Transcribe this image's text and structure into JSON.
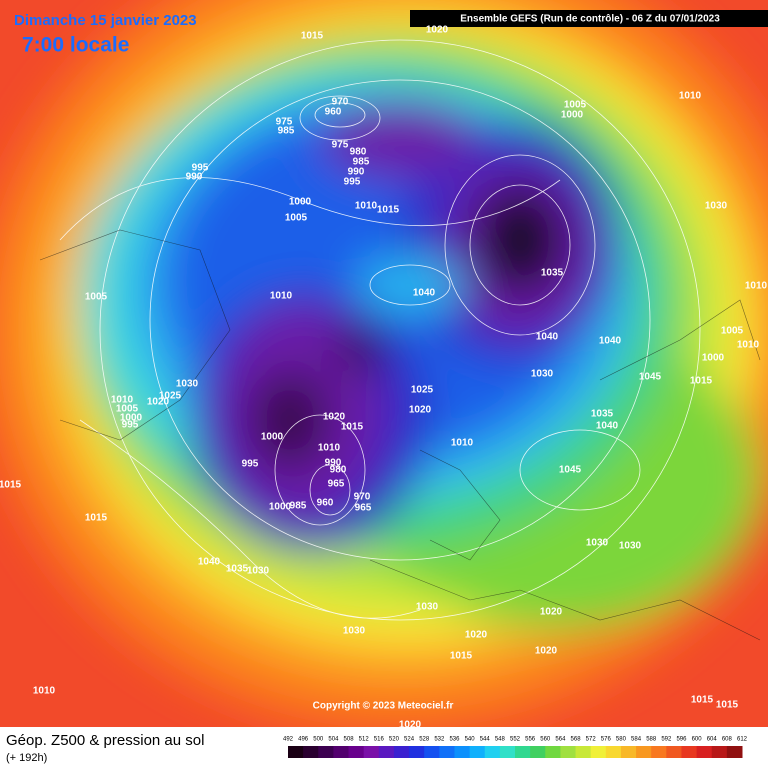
{
  "header": {
    "date": "Dimanche 15 janvier 2023",
    "time": "7:00 locale",
    "run": "Ensemble GEFS  (Run de contrôle)  -  06 Z du 07/01/2023"
  },
  "copyright": "Copyright © 2023 Meteociel.fr",
  "footer": {
    "title": "Géop. Z500 & pression au sol",
    "lead": "(+ 192h)"
  },
  "colorbar_ticks": [
    492,
    496,
    500,
    504,
    508,
    512,
    516,
    520,
    524,
    528,
    532,
    536,
    540,
    544,
    548,
    552,
    556,
    560,
    564,
    568,
    572,
    576,
    580,
    584,
    588,
    592,
    596,
    600,
    604,
    608,
    612
  ],
  "pressure_labels": [
    "1015",
    "1020",
    "1005",
    "1000",
    "1010",
    "970",
    "960",
    "975",
    "985",
    "975",
    "980",
    "985",
    "990",
    "995",
    "995",
    "990",
    "1000",
    "1005",
    "1010",
    "1015",
    "1030",
    "1035",
    "1040",
    "1005",
    "1010",
    "1010",
    "1005",
    "1010",
    "1040",
    "1040",
    "1000",
    "1045",
    "1015",
    "1030",
    "1030",
    "1025",
    "1020",
    "1010",
    "1005",
    "1000",
    "995",
    "1025",
    "1020",
    "1020",
    "1015",
    "1000",
    "1035",
    "1040",
    "1010",
    "1010",
    "990",
    "980",
    "995",
    "965",
    "1045",
    "970",
    "965",
    "1000",
    "985",
    "960",
    "1015",
    "1015",
    "1030",
    "1030",
    "1040",
    "1035",
    "1030",
    "1030",
    "1020",
    "1020",
    "1030",
    "1020",
    "1015",
    "1010",
    "1015",
    "1015",
    "1020"
  ]
}
